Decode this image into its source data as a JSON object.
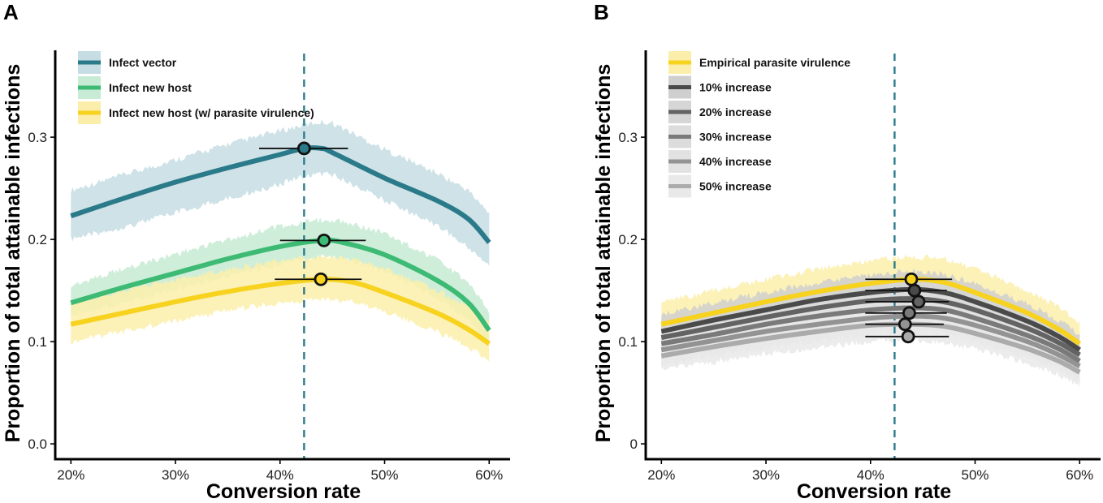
{
  "chart_data": [
    {
      "panel": "A",
      "type": "line",
      "xlabel": "Conversion rate",
      "ylabel": "Proportion of total attainable infections",
      "xlim": [
        18.5,
        62
      ],
      "ylim": [
        -0.015,
        0.385
      ],
      "x_ticks": [
        20,
        30,
        40,
        50,
        60
      ],
      "x_tick_labels": [
        "20%",
        "30%",
        "40%",
        "50%",
        "60%"
      ],
      "y_ticks": [
        0,
        0.1,
        0.2,
        0.3
      ],
      "y_tick_labels": [
        "0.0",
        "0.1",
        "0.2",
        "0.3"
      ],
      "vline_x": 42.3,
      "vline_color": "#2a7a8a",
      "legend_position": "top-left",
      "series": [
        {
          "name": "Infect vector",
          "color": "#2a7a8a",
          "band_color": "#c5dde3",
          "line_width": 6,
          "x": [
            20,
            25,
            30,
            35,
            40,
            42.3,
            44,
            45,
            50,
            55,
            58,
            60
          ],
          "y": [
            0.223,
            0.24,
            0.256,
            0.27,
            0.283,
            0.289,
            0.289,
            0.285,
            0.26,
            0.238,
            0.22,
            0.197
          ],
          "lower": [
            0.2,
            0.212,
            0.226,
            0.24,
            0.254,
            0.262,
            0.264,
            0.263,
            0.238,
            0.214,
            0.192,
            0.175
          ],
          "upper": [
            0.248,
            0.263,
            0.278,
            0.293,
            0.306,
            0.312,
            0.315,
            0.314,
            0.288,
            0.265,
            0.248,
            0.225
          ],
          "marker": {
            "x": 42.3,
            "y": 0.289,
            "xmin": 38.0,
            "xmax": 46.5
          }
        },
        {
          "name": "Infect new host",
          "color": "#3dba73",
          "band_color": "#c7ebd4",
          "line_width": 6,
          "x": [
            20,
            25,
            30,
            35,
            40,
            44,
            46,
            50,
            55,
            58,
            60
          ],
          "y": [
            0.138,
            0.153,
            0.167,
            0.181,
            0.193,
            0.199,
            0.197,
            0.185,
            0.16,
            0.138,
            0.111
          ],
          "lower": [
            0.125,
            0.138,
            0.151,
            0.164,
            0.176,
            0.183,
            0.181,
            0.169,
            0.144,
            0.122,
            0.098
          ],
          "upper": [
            0.155,
            0.171,
            0.186,
            0.2,
            0.213,
            0.219,
            0.218,
            0.206,
            0.18,
            0.158,
            0.13
          ],
          "marker": {
            "x": 44.2,
            "y": 0.199,
            "xmin": 40.0,
            "xmax": 48.2
          }
        },
        {
          "name": "Infect new host (w/ parasite virulence)",
          "color": "#f7d21e",
          "band_color": "#fbeeaa",
          "line_width": 6,
          "x": [
            20,
            25,
            30,
            35,
            40,
            44,
            47,
            50,
            55,
            58,
            60
          ],
          "y": [
            0.117,
            0.128,
            0.139,
            0.149,
            0.157,
            0.161,
            0.158,
            0.148,
            0.128,
            0.112,
            0.098
          ],
          "lower": [
            0.1,
            0.11,
            0.12,
            0.13,
            0.138,
            0.142,
            0.139,
            0.13,
            0.11,
            0.095,
            0.082
          ],
          "upper": [
            0.138,
            0.15,
            0.161,
            0.171,
            0.179,
            0.183,
            0.181,
            0.171,
            0.15,
            0.134,
            0.118
          ],
          "marker": {
            "x": 43.9,
            "y": 0.161,
            "xmin": 39.5,
            "xmax": 47.8
          }
        }
      ]
    },
    {
      "panel": "B",
      "type": "line",
      "xlabel": "Conversion rate",
      "ylabel": "Proportion of total attainable infections",
      "xlim": [
        18.5,
        62
      ],
      "ylim": [
        -0.015,
        0.385
      ],
      "x_ticks": [
        20,
        30,
        40,
        50,
        60
      ],
      "x_tick_labels": [
        "20%",
        "30%",
        "40%",
        "50%",
        "60%"
      ],
      "y_ticks": [
        0,
        0.1,
        0.2,
        0.3
      ],
      "y_tick_labels": [
        "0",
        "0.1",
        "0.2",
        "0.3"
      ],
      "vline_x": 42.3,
      "vline_color": "#2a7a8a",
      "legend_position": "top-left",
      "series": [
        {
          "name": "Empirical parasite virulence",
          "color": "#f7d21e",
          "band_color": "#fbeeaa",
          "line_width": 6,
          "x": [
            20,
            25,
            30,
            35,
            40,
            44,
            47,
            50,
            55,
            58,
            60
          ],
          "y": [
            0.117,
            0.128,
            0.139,
            0.149,
            0.157,
            0.161,
            0.158,
            0.148,
            0.128,
            0.112,
            0.098
          ],
          "lower": [
            0.1,
            0.11,
            0.12,
            0.13,
            0.138,
            0.142,
            0.139,
            0.13,
            0.11,
            0.095,
            0.082
          ],
          "upper": [
            0.138,
            0.15,
            0.161,
            0.171,
            0.179,
            0.183,
            0.181,
            0.171,
            0.15,
            0.134,
            0.118
          ],
          "marker": {
            "x": 43.9,
            "y": 0.161,
            "xmin": 39.5,
            "xmax": 47.8
          }
        },
        {
          "name": "10% increase",
          "color": "#4a4a4a",
          "band_color": "#cfcfcf",
          "line_width": 6,
          "x": [
            20,
            25,
            30,
            35,
            40,
            44,
            47,
            50,
            55,
            58,
            60
          ],
          "y": [
            0.11,
            0.121,
            0.131,
            0.141,
            0.148,
            0.151,
            0.148,
            0.139,
            0.12,
            0.105,
            0.092
          ],
          "lower": [
            0.095,
            0.105,
            0.114,
            0.123,
            0.13,
            0.133,
            0.131,
            0.122,
            0.104,
            0.09,
            0.078
          ],
          "upper": [
            0.127,
            0.138,
            0.148,
            0.158,
            0.166,
            0.169,
            0.166,
            0.157,
            0.137,
            0.121,
            0.107
          ],
          "marker": {
            "x": 44.2,
            "y": 0.15,
            "xmin": 39.5,
            "xmax": 47.3
          }
        },
        {
          "name": "20% increase",
          "color": "#636363",
          "band_color": "#d6d6d6",
          "line_width": 6,
          "x": [
            20,
            25,
            30,
            35,
            40,
            44,
            47,
            50,
            55,
            58,
            60
          ],
          "y": [
            0.104,
            0.114,
            0.124,
            0.133,
            0.14,
            0.142,
            0.139,
            0.131,
            0.113,
            0.099,
            0.087
          ],
          "lower": [
            0.09,
            0.099,
            0.108,
            0.116,
            0.123,
            0.125,
            0.123,
            0.115,
            0.098,
            0.085,
            0.073
          ],
          "upper": [
            0.119,
            0.13,
            0.14,
            0.15,
            0.157,
            0.16,
            0.157,
            0.148,
            0.129,
            0.114,
            0.101
          ],
          "marker": {
            "x": 44.6,
            "y": 0.139,
            "xmin": 39.5,
            "xmax": 47.5
          }
        },
        {
          "name": "30% increase",
          "color": "#7a7a7a",
          "band_color": "#dcdcdc",
          "line_width": 6,
          "x": [
            20,
            25,
            30,
            35,
            40,
            44,
            47,
            50,
            55,
            58,
            60
          ],
          "y": [
            0.098,
            0.107,
            0.117,
            0.125,
            0.131,
            0.133,
            0.131,
            0.123,
            0.106,
            0.093,
            0.081
          ],
          "lower": [
            0.084,
            0.093,
            0.101,
            0.109,
            0.115,
            0.117,
            0.115,
            0.107,
            0.091,
            0.079,
            0.068
          ],
          "upper": [
            0.113,
            0.122,
            0.132,
            0.141,
            0.148,
            0.15,
            0.148,
            0.14,
            0.122,
            0.108,
            0.095
          ],
          "marker": {
            "x": 43.7,
            "y": 0.128,
            "xmin": 39.5,
            "xmax": 47.3
          }
        },
        {
          "name": "40% increase",
          "color": "#939393",
          "band_color": "#e2e2e2",
          "line_width": 6,
          "x": [
            20,
            25,
            30,
            35,
            40,
            44,
            47,
            50,
            55,
            58,
            60
          ],
          "y": [
            0.092,
            0.101,
            0.11,
            0.117,
            0.123,
            0.125,
            0.123,
            0.116,
            0.1,
            0.087,
            0.076
          ],
          "lower": [
            0.078,
            0.086,
            0.094,
            0.101,
            0.107,
            0.109,
            0.107,
            0.1,
            0.085,
            0.073,
            0.062
          ],
          "upper": [
            0.107,
            0.116,
            0.125,
            0.133,
            0.14,
            0.142,
            0.14,
            0.132,
            0.115,
            0.101,
            0.089
          ],
          "marker": {
            "x": 43.3,
            "y": 0.117,
            "xmin": 39.5,
            "xmax": 47.0
          }
        },
        {
          "name": "50% increase",
          "color": "#ababab",
          "band_color": "#e9e9e9",
          "line_width": 6,
          "x": [
            20,
            25,
            30,
            35,
            40,
            44,
            47,
            50,
            55,
            58,
            60
          ],
          "y": [
            0.086,
            0.095,
            0.103,
            0.11,
            0.116,
            0.117,
            0.115,
            0.108,
            0.093,
            0.081,
            0.07
          ],
          "lower": [
            0.072,
            0.08,
            0.088,
            0.094,
            0.1,
            0.101,
            0.099,
            0.093,
            0.079,
            0.067,
            0.057
          ],
          "upper": [
            0.1,
            0.109,
            0.118,
            0.126,
            0.132,
            0.134,
            0.132,
            0.124,
            0.108,
            0.095,
            0.083
          ],
          "marker": {
            "x": 43.6,
            "y": 0.105,
            "xmin": 39.5,
            "xmax": 47.5
          }
        }
      ]
    }
  ]
}
